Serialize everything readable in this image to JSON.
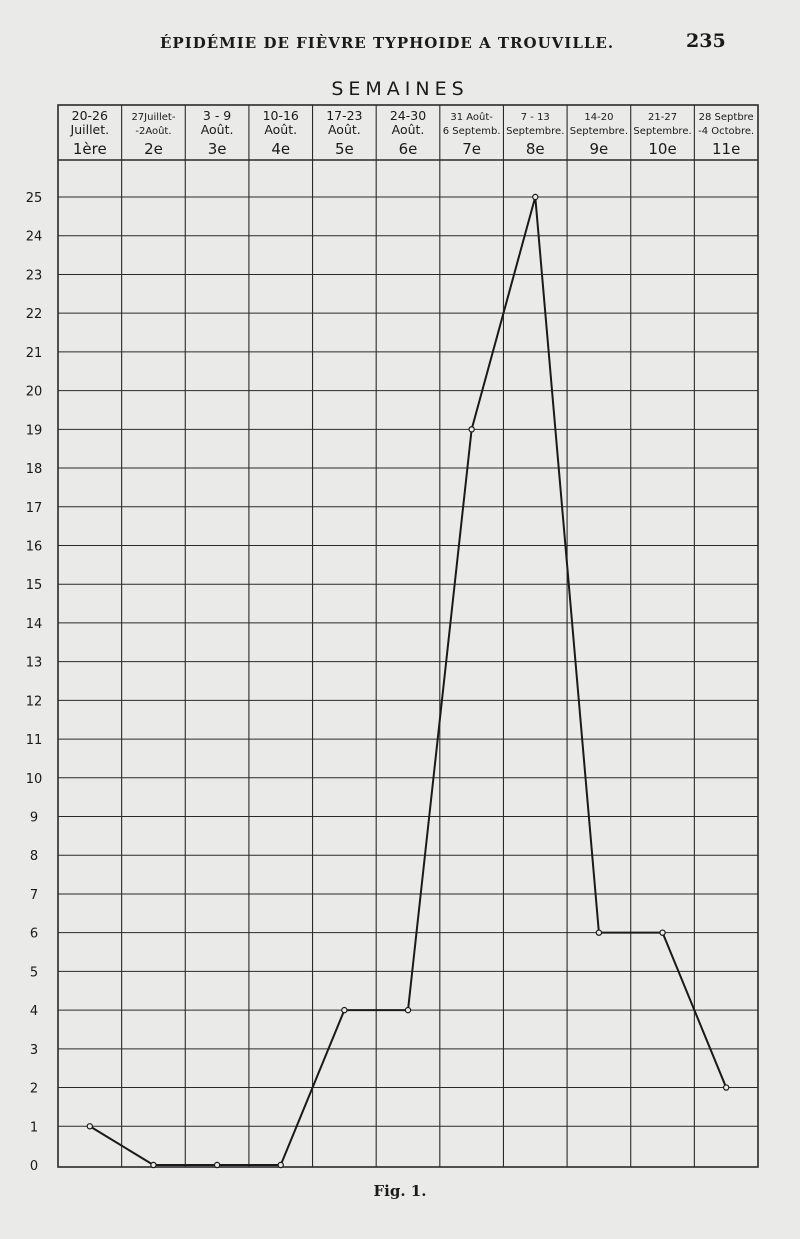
{
  "running_head": "ÉPIDÉMIE DE FIÈVRE TYPHOIDE A TROUVILLE.",
  "page_number": "235",
  "caption": "Fig. 1.",
  "chart_data": {
    "type": "line",
    "title": "SEMAINES",
    "categories": [
      {
        "dates": [
          "20-26",
          "Juillet."
        ],
        "week": "1ère"
      },
      {
        "dates": [
          "27Juillet-",
          "-2Août."
        ],
        "week": "2e"
      },
      {
        "dates": [
          "3 - 9",
          "Août."
        ],
        "week": "3e"
      },
      {
        "dates": [
          "10-16",
          "Août."
        ],
        "week": "4e"
      },
      {
        "dates": [
          "17-23",
          "Août."
        ],
        "week": "5e"
      },
      {
        "dates": [
          "24-30",
          "Août."
        ],
        "week": "6e"
      },
      {
        "dates": [
          "31 Août-",
          "6 Septemb."
        ],
        "week": "7e"
      },
      {
        "dates": [
          "7 - 13",
          "Septembre."
        ],
        "week": "8e"
      },
      {
        "dates": [
          "14-20",
          "Septembre."
        ],
        "week": "9e"
      },
      {
        "dates": [
          "21-27",
          "Septembre."
        ],
        "week": "10e"
      },
      {
        "dates": [
          "28 Septbre",
          "-4 Octobre."
        ],
        "week": "11e"
      }
    ],
    "values": [
      1,
      0,
      0,
      0,
      4,
      4,
      19,
      25,
      6,
      6,
      2
    ],
    "ylim": [
      0,
      25
    ],
    "yticks": [
      0,
      1,
      2,
      3,
      4,
      5,
      6,
      7,
      8,
      9,
      10,
      11,
      12,
      13,
      14,
      15,
      16,
      17,
      18,
      19,
      20,
      21,
      22,
      23,
      24,
      25
    ],
    "grid": true,
    "line_color": "#1a1a1a"
  }
}
